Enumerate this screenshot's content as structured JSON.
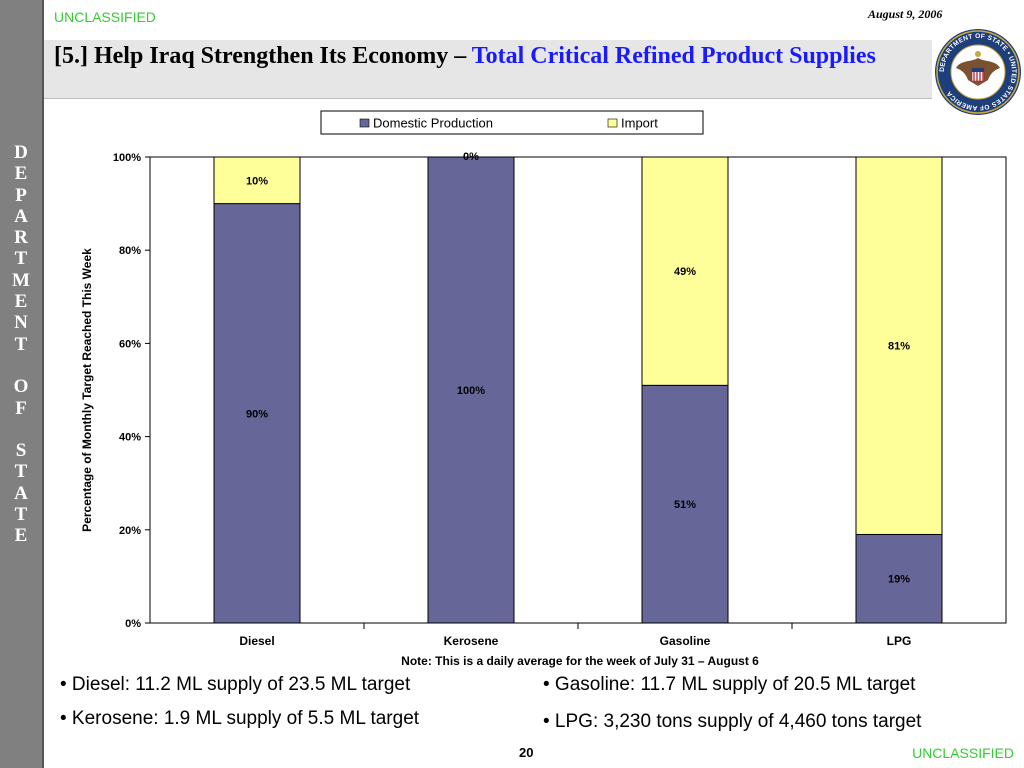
{
  "header": {
    "classification_top": "UNCLASSIFIED",
    "date": "August 9, 2006",
    "title_main": "[5.] Help Iraq Strengthen Its Economy – ",
    "title_accent": "Total Critical Refined Product Supplies"
  },
  "sidebar": {
    "letters": [
      "D",
      "E",
      "P",
      "A",
      "R",
      "T",
      "M",
      "E",
      "N",
      "T",
      "",
      "O",
      "F",
      "",
      "S",
      "T",
      "A",
      "T",
      "E"
    ]
  },
  "seal": {
    "text": "DEPARTMENT OF STATE • UNITED STATES OF AMERICA"
  },
  "chart_data": {
    "type": "bar",
    "stacked": true,
    "categories": [
      "Diesel",
      "Kerosene",
      "Gasoline",
      "LPG"
    ],
    "series": [
      {
        "name": "Domestic Production",
        "values": [
          90,
          100,
          51,
          19
        ],
        "labels": [
          "90%",
          "100%",
          "51%",
          "19%"
        ],
        "color": "#666699"
      },
      {
        "name": "Import",
        "values": [
          10,
          0,
          49,
          81
        ],
        "labels": [
          "10%",
          "0%",
          "49%",
          "81%"
        ],
        "color": "#ffff99"
      }
    ],
    "ylabel": "Percentage of Monthly Target Reached This Week",
    "ylim": [
      0,
      100
    ],
    "yticks": [
      "0%",
      "20%",
      "40%",
      "60%",
      "80%",
      "100%"
    ],
    "note": "Note: This is a daily average for the week of July 31 – August 6",
    "legend_position": "top-center",
    "grid": false
  },
  "bullets": [
    "• Diesel: 11.2 ML supply of 23.5 ML target",
    "• Kerosene: 1.9 ML supply of 5.5 ML target",
    "• Gasoline: 11.7 ML supply of 20.5 ML target",
    "• LPG: 3,230 tons supply of 4,460 tons target"
  ],
  "footer": {
    "page_number": "20",
    "classification_bottom": "UNCLASSIFIED"
  }
}
